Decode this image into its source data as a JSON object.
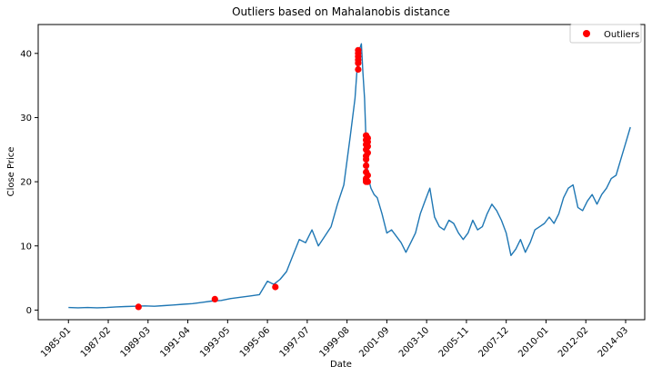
{
  "chart_data": {
    "type": "line",
    "title": "Outliers based on Mahalanobis distance",
    "xlabel": "Date",
    "ylabel": "Close Price",
    "xlim": [
      "1983-06",
      "2015-03"
    ],
    "ylim": [
      -1.5,
      44.5
    ],
    "grid": false,
    "legend_position": "top-right",
    "x_tick_labels": [
      "1985-01",
      "1987-02",
      "1989-03",
      "1991-04",
      "1993-05",
      "1995-06",
      "1997-07",
      "1999-08",
      "2001-09",
      "2003-10",
      "2005-11",
      "2007-12",
      "2010-01",
      "2012-02",
      "2014-03"
    ],
    "y_ticks": [
      0,
      10,
      20,
      30,
      40
    ],
    "series": [
      {
        "name": "",
        "color": "#1f77b4",
        "x": [
          "1985-01",
          "1985-07",
          "1986-01",
          "1986-07",
          "1987-01",
          "1987-07",
          "1988-01",
          "1988-07",
          "1989-01",
          "1989-07",
          "1990-01",
          "1990-07",
          "1991-01",
          "1991-07",
          "1992-01",
          "1992-07",
          "1993-01",
          "1993-07",
          "1994-01",
          "1994-07",
          "1995-01",
          "1995-06",
          "1995-10",
          "1996-02",
          "1996-06",
          "1996-10",
          "1997-02",
          "1997-06",
          "1997-10",
          "1998-02",
          "1998-06",
          "1998-10",
          "1999-02",
          "1999-06",
          "1999-10",
          "2000-01",
          "2000-03",
          "2000-05",
          "2000-06",
          "2000-07",
          "2000-08",
          "2000-09",
          "2000-10",
          "2000-11",
          "2001-01",
          "2001-03",
          "2001-06",
          "2001-09",
          "2001-12",
          "2002-03",
          "2002-06",
          "2002-09",
          "2002-12",
          "2003-03",
          "2003-06",
          "2003-09",
          "2003-12",
          "2004-03",
          "2004-06",
          "2004-09",
          "2004-12",
          "2005-03",
          "2005-06",
          "2005-09",
          "2005-12",
          "2006-03",
          "2006-06",
          "2006-09",
          "2006-12",
          "2007-03",
          "2007-06",
          "2007-09",
          "2007-12",
          "2008-03",
          "2008-06",
          "2008-09",
          "2008-12",
          "2009-03",
          "2009-06",
          "2009-09",
          "2009-12",
          "2010-03",
          "2010-06",
          "2010-09",
          "2010-12",
          "2011-03",
          "2011-06",
          "2011-09",
          "2011-12",
          "2012-03",
          "2012-06",
          "2012-09",
          "2012-12",
          "2013-03",
          "2013-06",
          "2013-09",
          "2013-12",
          "2014-03",
          "2014-06"
        ],
        "y": [
          0.4,
          0.35,
          0.4,
          0.35,
          0.4,
          0.5,
          0.55,
          0.6,
          0.65,
          0.6,
          0.7,
          0.8,
          0.9,
          1.0,
          1.2,
          1.4,
          1.5,
          1.8,
          2.0,
          2.2,
          2.4,
          4.5,
          4.0,
          4.8,
          6.0,
          8.5,
          11.0,
          10.5,
          12.5,
          10.0,
          11.5,
          13.0,
          16.5,
          19.5,
          27.0,
          33.0,
          40.0,
          41.5,
          37.0,
          33.0,
          26.0,
          21.0,
          20.0,
          19.0,
          18.0,
          17.5,
          15.0,
          12.0,
          12.5,
          11.5,
          10.5,
          9.0,
          10.5,
          12.0,
          15.0,
          17.0,
          19.0,
          14.5,
          13.0,
          12.5,
          14.0,
          13.5,
          12.0,
          11.0,
          12.0,
          14.0,
          12.5,
          13.0,
          15.0,
          16.5,
          15.5,
          14.0,
          12.0,
          8.5,
          9.5,
          11.0,
          9.0,
          10.5,
          12.5,
          13.0,
          13.5,
          14.5,
          13.5,
          15.0,
          17.5,
          19.0,
          19.5,
          16.0,
          15.5,
          17.0,
          18.0,
          16.5,
          18.0,
          19.0,
          20.5,
          21.0,
          23.5,
          26.0,
          28.5
        ]
      }
    ],
    "outliers": {
      "name": "Outliers",
      "color": "#ff0000",
      "x": [
        "1988-09",
        "1992-09",
        "1995-11",
        "2000-03",
        "2000-03",
        "2000-03",
        "2000-03",
        "2000-03",
        "2000-03",
        "2000-08",
        "2000-08",
        "2000-08",
        "2000-08",
        "2000-08",
        "2000-08",
        "2000-08",
        "2000-08",
        "2000-08",
        "2000-08",
        "2000-08",
        "2000-09",
        "2000-09",
        "2000-09",
        "2000-09",
        "2000-09",
        "2000-09"
      ],
      "y": [
        0.5,
        1.7,
        3.6,
        37.5,
        38.5,
        39.5,
        40.5,
        40.0,
        39.0,
        27.2,
        26.5,
        25.8,
        25.0,
        24.0,
        23.5,
        22.5,
        21.5,
        20.5,
        20.0,
        20.3,
        26.8,
        26.2,
        25.5,
        24.5,
        21.0,
        20.0
      ]
    }
  }
}
